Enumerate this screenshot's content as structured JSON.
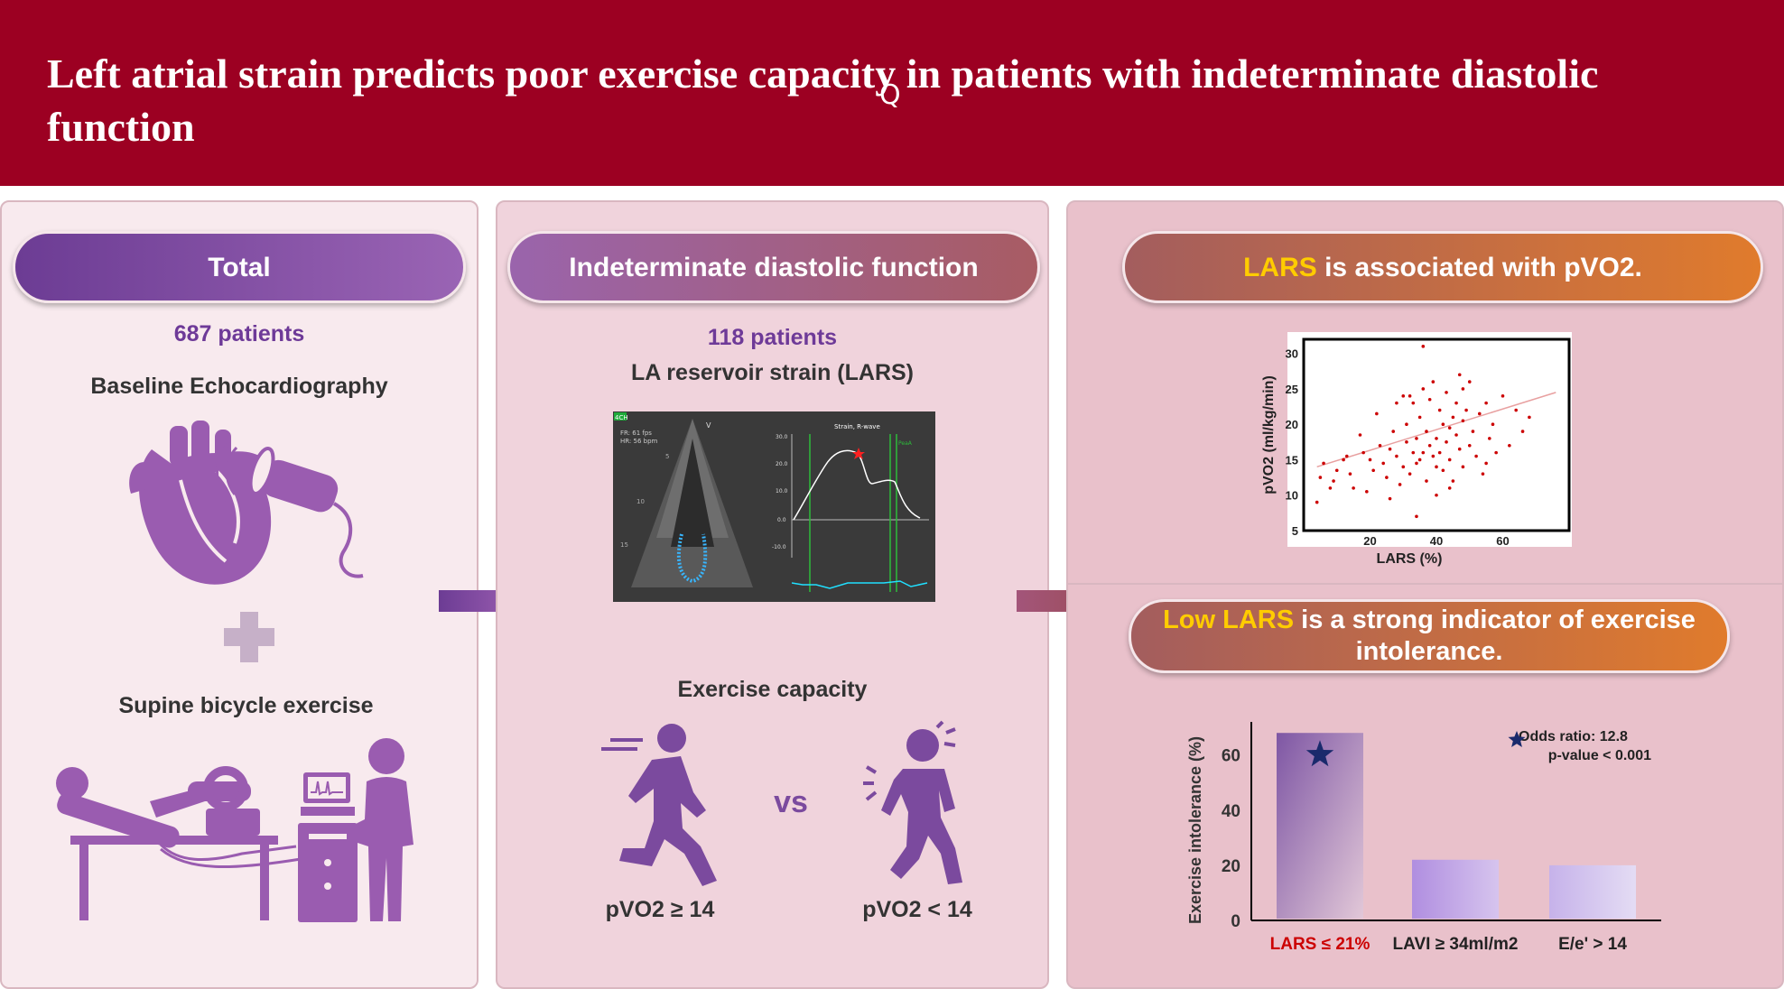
{
  "header": {
    "title": "Left atrial strain predicts poor exercise capacity in patients with indeterminate diastolic function"
  },
  "colors": {
    "header_bg": "#9c0022",
    "purple": "#7b4a9e",
    "orange": "#e07b2c",
    "highlight": "#ffcc00",
    "red": "#cc0000"
  },
  "panel1": {
    "pill": "Total",
    "patients": "687 patients",
    "baseline": "Baseline Echocardiography",
    "exercise": "Supine bicycle exercise",
    "icons": [
      "heart-icon",
      "ultrasound-probe-icon",
      "plus-icon",
      "bicycle-exercise-test-icon"
    ]
  },
  "panel2": {
    "pill": "Indeterminate diastolic function",
    "patients": "118 patients",
    "lars": "LA reservoir strain (LARS)",
    "echo_image": {
      "view": "4CH",
      "fr": "FR: 61 fps",
      "hr": "HR: 56 bpm",
      "marker_v": "V",
      "strain_title": "Strain, R-wave",
      "y_ticks": [
        "30.0",
        "20.0",
        "10.0",
        "0.0",
        "-10.0"
      ],
      "pea_label": "PeaA",
      "depth_labels": [
        "5",
        "10",
        "15"
      ]
    },
    "exercise_capacity": "Exercise capacity",
    "vs": "vs",
    "good_label": "pVO2 ≥ 14",
    "poor_label": "pVO2 < 14",
    "icons": [
      "runner-icon",
      "exhausted-person-icon"
    ]
  },
  "panel3": {
    "pill_hl": "LARS",
    "pill_rest": " is associated with pVO2.",
    "pill2_hl": "Low LARS",
    "pill2_rest": " is a strong indicator of exercise intolerance.",
    "odds_ratio": "Odds ratio: 12.8",
    "p_value": "p-value < 0.001",
    "star_icon": "star-icon"
  },
  "chart_data": [
    {
      "type": "scatter",
      "xlabel": "LARS (%)",
      "ylabel": "pVO2 (ml/kg/min)",
      "xlim": [
        0,
        80
      ],
      "ylim": [
        5,
        32
      ],
      "x_ticks": [
        20,
        40,
        60
      ],
      "y_ticks": [
        5,
        10,
        15,
        20,
        25,
        30
      ],
      "trendline": [
        [
          4,
          14
        ],
        [
          76,
          24.5
        ]
      ],
      "points": [
        [
          4,
          9
        ],
        [
          5,
          12.5
        ],
        [
          6,
          14.5
        ],
        [
          8,
          11
        ],
        [
          9,
          12
        ],
        [
          10,
          13.5
        ],
        [
          12,
          15
        ],
        [
          13,
          15.5
        ],
        [
          14,
          13
        ],
        [
          15,
          11
        ],
        [
          17,
          18.5
        ],
        [
          18,
          16
        ],
        [
          19,
          10.5
        ],
        [
          20,
          15
        ],
        [
          21,
          13.5
        ],
        [
          22,
          21.5
        ],
        [
          23,
          17
        ],
        [
          24,
          14.5
        ],
        [
          25,
          12.5
        ],
        [
          26,
          16.5
        ],
        [
          27,
          19
        ],
        [
          28,
          23
        ],
        [
          28,
          15.5
        ],
        [
          29,
          11.5
        ],
        [
          30,
          14
        ],
        [
          31,
          17.5
        ],
        [
          31,
          20
        ],
        [
          32,
          24
        ],
        [
          32,
          13
        ],
        [
          33,
          16
        ],
        [
          33,
          23
        ],
        [
          34,
          18
        ],
        [
          34,
          14.5
        ],
        [
          35,
          21
        ],
        [
          35,
          15
        ],
        [
          36,
          16
        ],
        [
          36,
          25
        ],
        [
          37,
          12
        ],
        [
          37,
          19
        ],
        [
          38,
          17
        ],
        [
          38,
          23.5
        ],
        [
          39,
          15.5
        ],
        [
          39,
          26
        ],
        [
          40,
          14
        ],
        [
          40,
          18
        ],
        [
          41,
          22
        ],
        [
          41,
          16
        ],
        [
          42,
          13.5
        ],
        [
          42,
          20
        ],
        [
          43,
          24.5
        ],
        [
          43,
          17.5
        ],
        [
          44,
          15
        ],
        [
          44,
          19.5
        ],
        [
          45,
          21
        ],
        [
          45,
          12
        ],
        [
          46,
          18.5
        ],
        [
          46,
          23
        ],
        [
          47,
          16.5
        ],
        [
          47,
          27
        ],
        [
          48,
          14
        ],
        [
          48,
          20.5
        ],
        [
          49,
          22
        ],
        [
          50,
          17
        ],
        [
          50,
          26
        ],
        [
          51,
          19
        ],
        [
          52,
          15.5
        ],
        [
          53,
          21.5
        ],
        [
          54,
          13
        ],
        [
          55,
          23
        ],
        [
          56,
          18
        ],
        [
          57,
          20
        ],
        [
          58,
          16
        ],
        [
          60,
          24
        ],
        [
          62,
          17
        ],
        [
          64,
          22
        ],
        [
          66,
          19
        ],
        [
          68,
          21
        ],
        [
          36,
          31
        ],
        [
          34,
          7
        ],
        [
          40,
          10
        ],
        [
          30,
          24
        ],
        [
          26,
          9.5
        ],
        [
          44,
          11
        ],
        [
          48,
          25
        ],
        [
          55,
          14.5
        ]
      ]
    },
    {
      "type": "bar",
      "categories": [
        "LARS ≤ 21%",
        "LAVI ≥ 34ml/m2",
        "E/e' > 14"
      ],
      "values": [
        68,
        22,
        20
      ],
      "ylabel": "Exercise intolerance (%)",
      "ylim": [
        0,
        72
      ],
      "y_ticks": [
        0,
        20,
        40,
        60
      ]
    }
  ]
}
